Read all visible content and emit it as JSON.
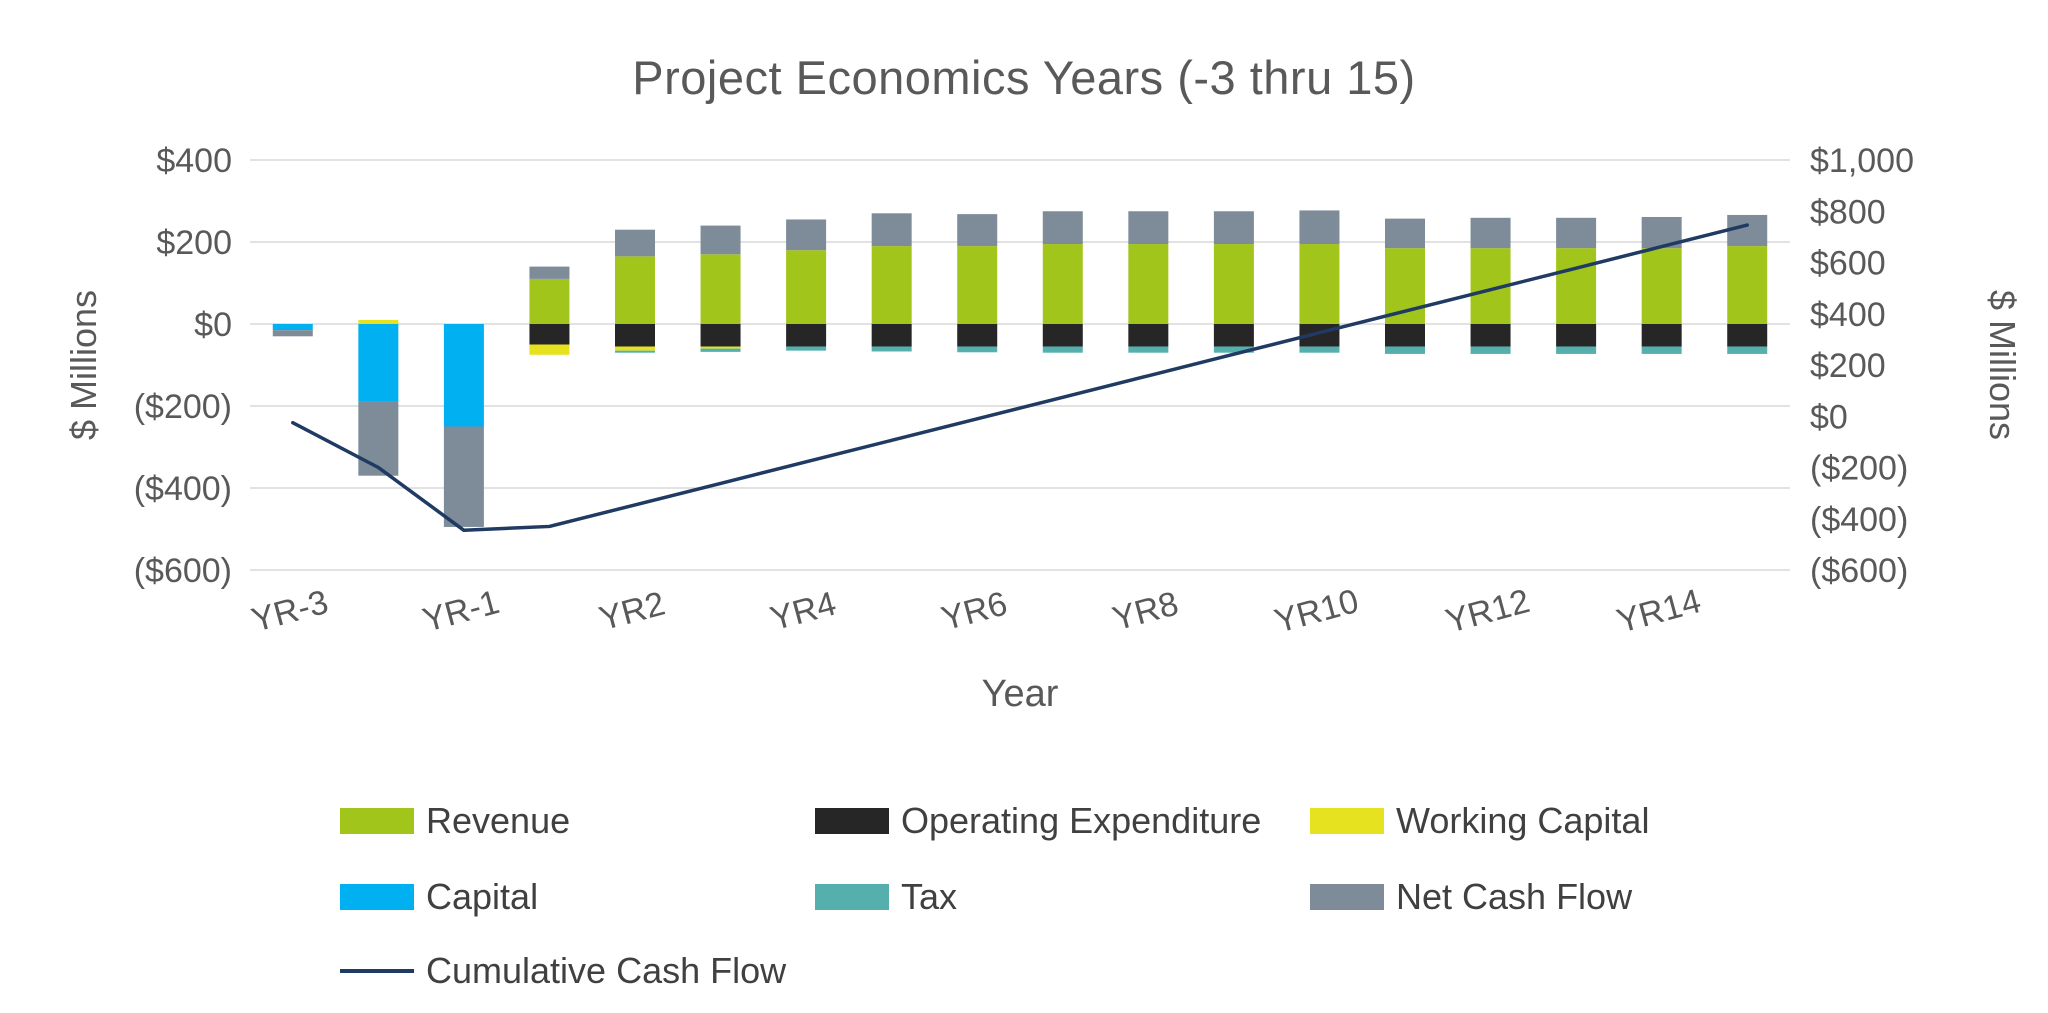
{
  "title": "Project Economics Years (-3 thru 15)",
  "axes": {
    "left": {
      "title": "$ Millions",
      "tick_labels": [
        "$400",
        "$200",
        "$0",
        "($200)",
        "($400)",
        "($600)"
      ],
      "tick_values": [
        400,
        200,
        0,
        -200,
        -400,
        -600
      ]
    },
    "right": {
      "title": "$ Millions",
      "tick_labels": [
        "$1,000",
        "$800",
        "$600",
        "$400",
        "$200",
        "$0",
        "($200)",
        "($400)",
        "($600)"
      ],
      "tick_values": [
        1000,
        800,
        600,
        400,
        200,
        0,
        -200,
        -400,
        -600
      ]
    },
    "x": {
      "title": "Year",
      "tick_labels": [
        "YR-3",
        "YR-1",
        "YR2",
        "YR4",
        "YR6",
        "YR8",
        "YR10",
        "YR12",
        "YR14"
      ],
      "tick_indices": [
        0,
        2,
        4,
        6,
        8,
        10,
        12,
        14,
        16
      ]
    }
  },
  "chart_data": {
    "type": "bar",
    "subtype": "stacked-bar-with-cumulative-line",
    "title": "Project Economics Years (-3 thru 15)",
    "xlabel": "Year",
    "ylabel_left": "$ Millions",
    "ylabel_right": "$ Millions",
    "ylim_left": [
      -600,
      400
    ],
    "ylim_right": [
      -600,
      1000
    ],
    "grid": true,
    "legend_position": "bottom",
    "categories": [
      "YR-3",
      "YR-2",
      "YR-1",
      "YR1",
      "YR2",
      "YR3",
      "YR4",
      "YR5",
      "YR6",
      "YR7",
      "YR8",
      "YR9",
      "YR10",
      "YR11",
      "YR12",
      "YR13",
      "YR14",
      "YR15"
    ],
    "series": [
      {
        "name": "Revenue",
        "color": "#A2C51C",
        "axis": "left",
        "values": [
          0,
          0,
          0,
          110,
          165,
          170,
          180,
          190,
          190,
          195,
          195,
          195,
          195,
          185,
          185,
          185,
          185,
          190
        ]
      },
      {
        "name": "Operating Expenditure",
        "color": "#262626",
        "axis": "left",
        "values": [
          0,
          0,
          0,
          -50,
          -55,
          -55,
          -55,
          -55,
          -55,
          -55,
          -55,
          -55,
          -55,
          -55,
          -55,
          -55,
          -55,
          -55
        ]
      },
      {
        "name": "Working Capital",
        "color": "#E6E21F",
        "axis": "left",
        "values": [
          0,
          10,
          0,
          -25,
          -10,
          -5,
          0,
          0,
          0,
          0,
          0,
          0,
          0,
          0,
          0,
          0,
          0,
          0
        ]
      },
      {
        "name": "Capital",
        "color": "#00B0F0",
        "axis": "left",
        "values": [
          -15,
          -190,
          -250,
          0,
          0,
          0,
          0,
          0,
          0,
          0,
          0,
          0,
          0,
          0,
          0,
          0,
          0,
          0
        ]
      },
      {
        "name": "Tax",
        "color": "#55B0AD",
        "axis": "left",
        "values": [
          0,
          0,
          0,
          0,
          -5,
          -8,
          -10,
          -12,
          -14,
          -15,
          -15,
          -15,
          -15,
          -18,
          -18,
          -18,
          -18,
          -18
        ]
      },
      {
        "name": "Net Cash Flow",
        "color": "#7D8C98",
        "axis": "left",
        "values": [
          -15,
          -180,
          -245,
          30,
          65,
          70,
          75,
          80,
          78,
          80,
          80,
          80,
          82,
          72,
          74,
          74,
          76,
          76
        ]
      },
      {
        "name": "Cumulative Cash Flow",
        "type": "line",
        "color": "#1F3A63",
        "axis": "right",
        "values": [
          -25,
          -200,
          -445,
          -430,
          -346,
          -262,
          -178,
          -94,
          -10,
          74,
          158,
          242,
          326,
          410,
          494,
          578,
          662,
          746
        ]
      }
    ]
  },
  "legend": {
    "items": [
      {
        "label": "Revenue",
        "color": "#A2C51C",
        "swatch": "box",
        "col": 0,
        "row": 0
      },
      {
        "label": "Operating Expenditure",
        "color": "#262626",
        "swatch": "box",
        "col": 1,
        "row": 0
      },
      {
        "label": "Working Capital",
        "color": "#E6E21F",
        "swatch": "box",
        "col": 2,
        "row": 0
      },
      {
        "label": "Capital",
        "color": "#00B0F0",
        "swatch": "box",
        "col": 0,
        "row": 1
      },
      {
        "label": "Tax",
        "color": "#55B0AD",
        "swatch": "box",
        "col": 1,
        "row": 1
      },
      {
        "label": "Net Cash Flow",
        "color": "#7D8C98",
        "swatch": "box",
        "col": 2,
        "row": 1
      },
      {
        "label": "Cumulative Cash Flow",
        "color": "#1F3A63",
        "swatch": "line",
        "col": 0,
        "row": 2
      }
    ]
  },
  "style": {
    "gridline_color": "#D9D9D9",
    "tick_color": "#595959",
    "title_color": "#595959"
  }
}
